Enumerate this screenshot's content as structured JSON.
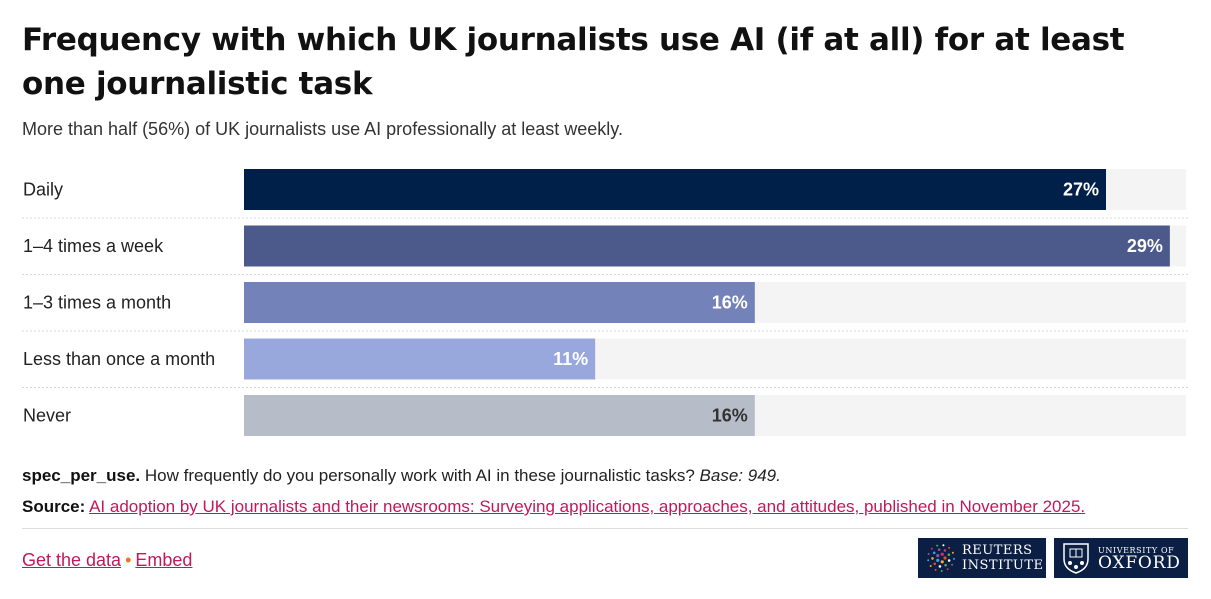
{
  "title": "Frequency with which UK journalists use AI (if at all) for at least one journalistic task",
  "subtitle": "More than half (56%) of UK journalists use AI professionally at least weekly.",
  "chart_data": {
    "type": "bar",
    "orientation": "horizontal",
    "categories": [
      "Daily",
      "1–4 times a week",
      "1–3 times a month",
      "Less than once a month",
      "Never"
    ],
    "values": [
      27,
      29,
      16,
      11,
      16
    ],
    "value_suffix": "%",
    "xlim": [
      0,
      30
    ],
    "colors": [
      "#00204a",
      "#4b5a8b",
      "#7382b8",
      "#98a8dc",
      "#b6bcc8"
    ],
    "label_colors": [
      "#ffffff",
      "#ffffff",
      "#ffffff",
      "#ffffff",
      "#333333"
    ],
    "track_color": "#f4f4f4"
  },
  "footnote": {
    "code": "spec_per_use.",
    "question": "How frequently do you personally work with AI in these journalistic tasks?",
    "base": "Base: 949."
  },
  "source": {
    "label": "Source:",
    "link_text": "AI adoption by UK journalists and their newsrooms: Surveying applications, approaches, and attitudes, published in November 2025."
  },
  "links": {
    "get_data": "Get the data",
    "separator": "•",
    "embed": "Embed"
  },
  "logos": {
    "reuters_line1": "REUTERS",
    "reuters_line2": "INSTITUTE",
    "oxford_line1": "UNIVERSITY OF",
    "oxford_line2": "OXFORD"
  }
}
